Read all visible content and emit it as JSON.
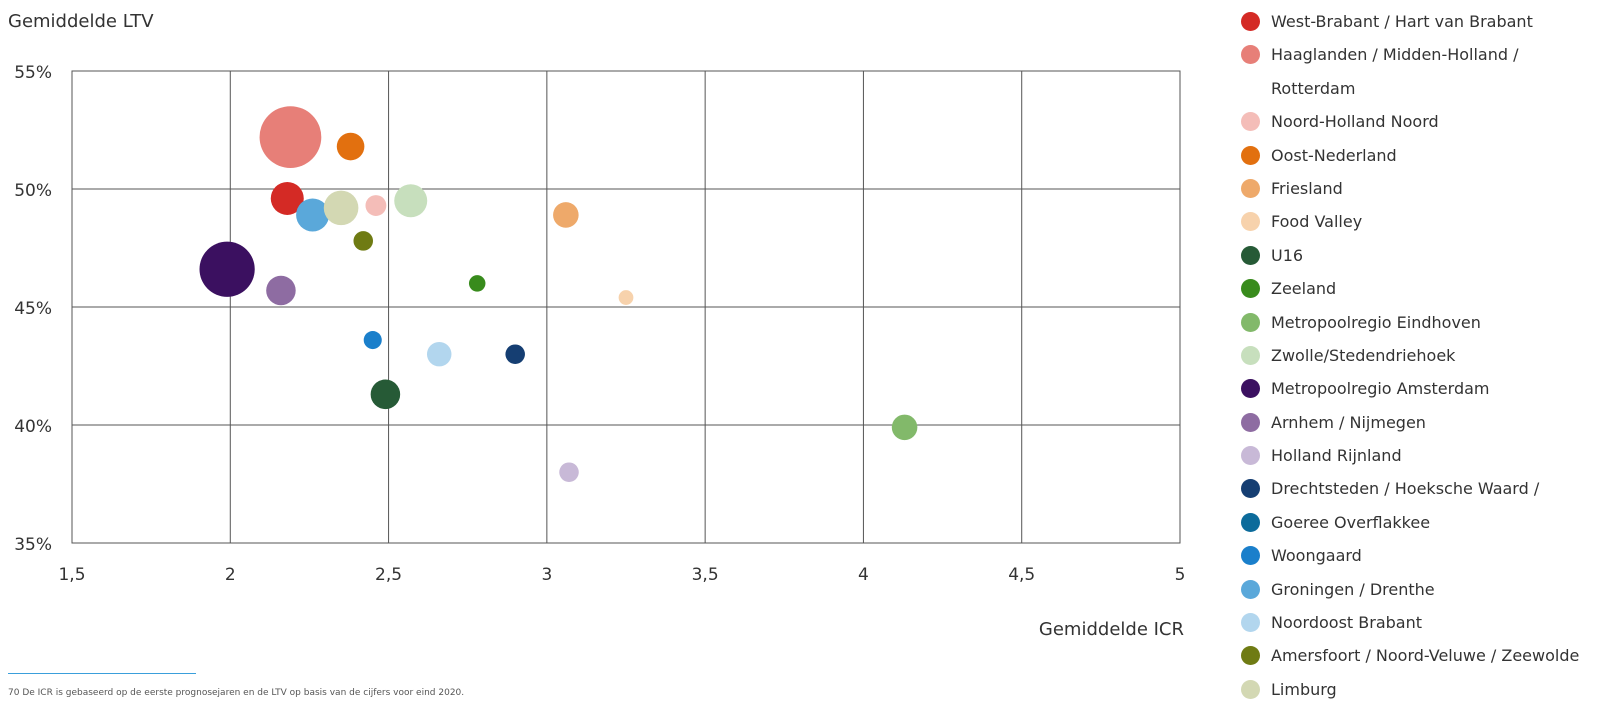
{
  "chart_data": {
    "type": "scatter",
    "ylabel": "Gemiddelde LTV",
    "xlabel": "Gemiddelde ICR",
    "xlim": [
      1.5,
      5
    ],
    "ylim": [
      35,
      55
    ],
    "x_ticks": [
      "1,5",
      "2",
      "2,5",
      "3",
      "3,5",
      "4",
      "4,5",
      "5"
    ],
    "y_ticks": [
      "55%",
      "50%",
      "45%",
      "40%",
      "35%"
    ],
    "grid": true,
    "legend_position": "right",
    "series": [
      {
        "name": "West-Brabant / Hart van Brabant",
        "x": 2.18,
        "y": 49.6,
        "size": 1.0,
        "color": "#d42a25"
      },
      {
        "name": "Haaglanden / Midden-Holland / Rotterdam",
        "x": 2.19,
        "y": 52.2,
        "size": 3.5,
        "color": "#e77f78"
      },
      {
        "name": "Noord-Holland Noord",
        "x": 2.46,
        "y": 49.3,
        "size": 0.4,
        "color": "#f4bdb8"
      },
      {
        "name": "Oost-Nederland",
        "x": 2.38,
        "y": 51.8,
        "size": 0.7,
        "color": "#e2700f"
      },
      {
        "name": "Friesland",
        "x": 3.06,
        "y": 48.9,
        "size": 0.6,
        "color": "#eea96a"
      },
      {
        "name": "Food Valley",
        "x": 3.25,
        "y": 45.4,
        "size": 0.2,
        "color": "#f7d2ac"
      },
      {
        "name": "U16",
        "x": 2.49,
        "y": 41.3,
        "size": 0.8,
        "color": "#265a36"
      },
      {
        "name": "Zeeland",
        "x": 2.78,
        "y": 46.0,
        "size": 0.25,
        "color": "#388b1c"
      },
      {
        "name": "Metropoolregio Eindhoven",
        "x": 4.13,
        "y": 39.9,
        "size": 0.6,
        "color": "#82b96a"
      },
      {
        "name": "Zwolle/Stedendriehoek",
        "x": 2.57,
        "y": 49.5,
        "size": 1.0,
        "color": "#c7dfbd"
      },
      {
        "name": "Metropoolregio Amsterdam",
        "x": 1.99,
        "y": 46.6,
        "size": 2.8,
        "color": "#3b1060"
      },
      {
        "name": "Arnhem / Nijmegen",
        "x": 2.16,
        "y": 45.7,
        "size": 0.8,
        "color": "#8e6ca2"
      },
      {
        "name": "Holland Rijnland",
        "x": 3.07,
        "y": 38.0,
        "size": 0.35,
        "color": "#c8b9d7"
      },
      {
        "name": "Drechtsteden / Hoeksche Waard /",
        "x": 2.9,
        "y": 43.0,
        "size": 0.35,
        "color": "#153e72"
      },
      {
        "name": "Goeree Overflakkee",
        "x": null,
        "y": null,
        "size": null,
        "color": "#0c6b9b"
      },
      {
        "name": "Woongaard",
        "x": 2.45,
        "y": 43.6,
        "size": 0.3,
        "color": "#1a7fcb"
      },
      {
        "name": "Groningen / Drenthe",
        "x": 2.26,
        "y": 48.9,
        "size": 1.0,
        "color": "#5aa8da"
      },
      {
        "name": "Noordoost Brabant",
        "x": 2.66,
        "y": 43.0,
        "size": 0.55,
        "color": "#b2d6ee"
      },
      {
        "name": "Amersfoort / Noord-Veluwe / Zeewolde",
        "x": 2.42,
        "y": 47.8,
        "size": 0.35,
        "color": "#6f7b13"
      },
      {
        "name": "Limburg",
        "x": 2.35,
        "y": 49.2,
        "size": 1.1,
        "color": "#d3d8b3"
      }
    ]
  },
  "legend": {
    "items": [
      {
        "label": "West-Brabant / Hart van Brabant",
        "color": "#d42a25"
      },
      {
        "label": "Haaglanden / Midden-Holland / Rotterdam",
        "color": "#e77f78",
        "wrap": true
      },
      {
        "label": "Noord-Holland Noord",
        "color": "#f4bdb8"
      },
      {
        "label": "Oost-Nederland",
        "color": "#e2700f"
      },
      {
        "label": "Friesland",
        "color": "#eea96a"
      },
      {
        "label": "Food Valley",
        "color": "#f7d2ac"
      },
      {
        "label": "U16",
        "color": "#265a36"
      },
      {
        "label": "Zeeland",
        "color": "#388b1c"
      },
      {
        "label": "Metropoolregio Eindhoven",
        "color": "#82b96a"
      },
      {
        "label": "Zwolle/Stedendriehoek",
        "color": "#c7dfbd"
      },
      {
        "label": "Metropoolregio Amsterdam",
        "color": "#3b1060"
      },
      {
        "label": "Arnhem / Nijmegen",
        "color": "#8e6ca2"
      },
      {
        "label": "Holland Rijnland",
        "color": "#c8b9d7"
      },
      {
        "label": "Drechtsteden /  Hoeksche Waard /",
        "color": "#153e72"
      },
      {
        "label": "Goeree Overflakkee",
        "color": "#0c6b9b"
      },
      {
        "label": "Woongaard",
        "color": "#1a7fcb"
      },
      {
        "label": "Groningen / Drenthe",
        "color": "#5aa8da"
      },
      {
        "label": "Noordoost Brabant",
        "color": "#b2d6ee"
      },
      {
        "label": "Amersfoort / Noord-Veluwe / Zeewolde",
        "color": "#6f7b13"
      },
      {
        "label": "Limburg",
        "color": "#d3d8b3"
      }
    ]
  },
  "footnote": {
    "text": "70    De ICR is gebaseerd op de eerste prognosejaren en de LTV op basis van de cijfers voor eind 2020."
  }
}
